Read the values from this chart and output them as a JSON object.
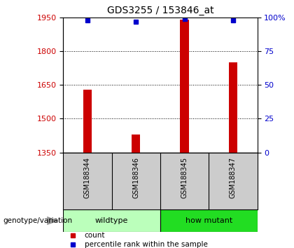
{
  "title": "GDS3255 / 153846_at",
  "samples": [
    "GSM188344",
    "GSM188346",
    "GSM188345",
    "GSM188347"
  ],
  "counts": [
    1630,
    1430,
    1940,
    1750
  ],
  "percentiles": [
    98,
    97,
    99,
    98
  ],
  "y_min": 1350,
  "y_max": 1950,
  "y_ticks": [
    1350,
    1500,
    1650,
    1800,
    1950
  ],
  "y_right_ticks": [
    0,
    25,
    50,
    75,
    100
  ],
  "y_right_labels": [
    "0",
    "25",
    "50",
    "75",
    "100%"
  ],
  "bar_color": "#cc0000",
  "dot_color": "#0000cc",
  "groups": [
    {
      "label": "wildtype",
      "samples": [
        0,
        1
      ],
      "color": "#bbffbb"
    },
    {
      "label": "how mutant",
      "samples": [
        2,
        3
      ],
      "color": "#22dd22"
    }
  ],
  "group_label": "genotype/variation",
  "legend_count_label": "count",
  "legend_pct_label": "percentile rank within the sample",
  "cell_bg": "#cccccc",
  "title_fontsize": 10,
  "tick_fontsize": 8,
  "label_fontsize": 7.5
}
